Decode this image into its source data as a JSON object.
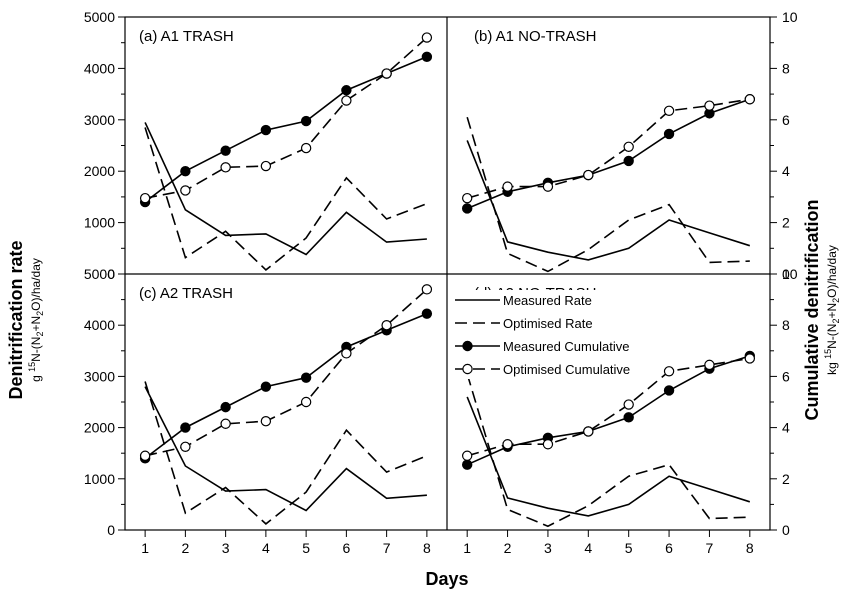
{
  "chart_data": {
    "type": "line",
    "xlabel": "Days",
    "y_left_label": {
      "title": "Denitrification rate",
      "unit_prefix": "g ",
      "unit_sup": "15",
      "unit_rest": "N-(N",
      "unit_sub1": "2",
      "unit_mid": "+N",
      "unit_sub2": "2",
      "unit_end": "O)/ha/day"
    },
    "y_right_label": {
      "title": "Cumulative denitrification",
      "unit_prefix": "kg ",
      "unit_sup": "15",
      "unit_rest": "N-(N",
      "unit_sub1": "2",
      "unit_mid": "+N",
      "unit_sub2": "2",
      "unit_end": "O)/ha/day"
    },
    "x_ticks": [
      "1",
      "2",
      "3",
      "4",
      "5",
      "6",
      "7",
      "8"
    ],
    "xlim": [
      0.5,
      8.5
    ],
    "y_left": {
      "ylim": [
        0,
        5000
      ],
      "ticks": [
        "0",
        "1000",
        "2000",
        "3000",
        "4000",
        "5000"
      ]
    },
    "y_right": {
      "ylim": [
        0,
        10
      ],
      "ticks": [
        "0",
        "2",
        "4",
        "6",
        "8",
        "10"
      ]
    },
    "legend": {
      "placement": "panel-d-upper-left",
      "entries": [
        "Measured Rate",
        "Optimised Rate",
        "Measured Cumulative",
        "Optimised Cumulative"
      ]
    },
    "panels": [
      {
        "label": "(a) A1  TRASH",
        "x": [
          1,
          2,
          3,
          4,
          5,
          6,
          7,
          8
        ],
        "series": [
          {
            "name": "Measured Rate",
            "axis": "left",
            "values": [
              2950,
              1250,
              750,
              780,
              380,
              1200,
              620,
              680
            ]
          },
          {
            "name": "Optimised Rate",
            "axis": "left",
            "values": [
              2850,
              320,
              830,
              80,
              700,
              1870,
              1070,
              1370
            ]
          },
          {
            "name": "Measured Cumulative",
            "axis": "right",
            "values": [
              2.8,
              4.0,
              4.8,
              5.6,
              5.95,
              7.15,
              7.8,
              8.45
            ]
          },
          {
            "name": "Optimised Cumulative",
            "axis": "right",
            "values": [
              2.95,
              3.25,
              4.15,
              4.2,
              4.9,
              6.75,
              7.8,
              9.2
            ]
          }
        ]
      },
      {
        "label": "(b) A1  NO-TRASH",
        "x": [
          1,
          2,
          3,
          4,
          5,
          6,
          7,
          8
        ],
        "series": [
          {
            "name": "Measured Rate",
            "axis": "right",
            "values": [
              5.2,
              1.25,
              0.85,
              0.55,
              1.0,
              2.1,
              1.6,
              1.1
            ]
          },
          {
            "name": "Optimised Rate",
            "axis": "right",
            "values": [
              6.1,
              0.8,
              0.1,
              0.95,
              2.1,
              2.7,
              0.45,
              0.5
            ]
          },
          {
            "name": "Measured Cumulative",
            "axis": "right",
            "values": [
              2.55,
              3.2,
              3.55,
              3.85,
              4.4,
              5.45,
              6.25,
              6.8
            ]
          },
          {
            "name": "Optimised Cumulative",
            "axis": "right",
            "values": [
              2.95,
              3.4,
              3.4,
              3.85,
              4.95,
              6.35,
              6.55,
              6.8
            ]
          }
        ]
      },
      {
        "label": "(c) A2  TRASH",
        "x": [
          1,
          2,
          3,
          4,
          5,
          6,
          7,
          8
        ],
        "series": [
          {
            "name": "Measured Rate",
            "axis": "left",
            "values": [
              2800,
              1250,
              760,
              790,
              380,
              1200,
              620,
              680
            ]
          },
          {
            "name": "Optimised Rate",
            "axis": "left",
            "values": [
              2900,
              330,
              830,
              120,
              740,
              1950,
              1130,
              1450
            ]
          },
          {
            "name": "Measured Cumulative",
            "axis": "right",
            "values": [
              2.8,
              4.0,
              4.8,
              5.6,
              5.95,
              7.15,
              7.8,
              8.45
            ]
          },
          {
            "name": "Optimised Cumulative",
            "axis": "right",
            "values": [
              2.9,
              3.25,
              4.15,
              4.25,
              5.0,
              6.9,
              8.0,
              9.4
            ]
          }
        ]
      },
      {
        "label": "(d) A2  NO-TRASH",
        "x": [
          1,
          2,
          3,
          4,
          5,
          6,
          7,
          8
        ],
        "series": [
          {
            "name": "Measured Rate",
            "axis": "right",
            "values": [
              5.2,
              1.25,
              0.85,
              0.55,
              1.0,
              2.1,
              1.6,
              1.1
            ]
          },
          {
            "name": "Optimised Rate",
            "axis": "right",
            "values": [
              6.1,
              0.8,
              0.15,
              0.95,
              2.1,
              2.55,
              0.45,
              0.5
            ]
          },
          {
            "name": "Measured Cumulative",
            "axis": "right",
            "values": [
              2.55,
              3.25,
              3.6,
              3.85,
              4.4,
              5.45,
              6.3,
              6.8
            ]
          },
          {
            "name": "Optimised Cumulative",
            "axis": "right",
            "values": [
              2.9,
              3.35,
              3.35,
              3.85,
              4.9,
              6.2,
              6.45,
              6.7
            ]
          }
        ]
      }
    ]
  }
}
